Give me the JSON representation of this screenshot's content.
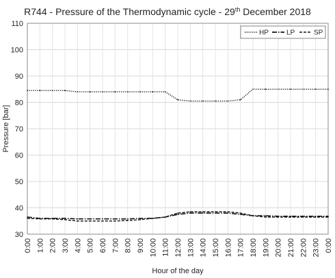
{
  "chart_data": {
    "type": "line",
    "title_main": "R744 - Pressure of the Thermodynamic cycle - 29",
    "title_sup": "th",
    "title_tail": " December 2018",
    "xlabel": "Hour of the day",
    "ylabel": "Pressure [bar]",
    "ylim": [
      30,
      110
    ],
    "yticks": [
      30,
      40,
      50,
      60,
      70,
      80,
      90,
      100,
      110
    ],
    "xticks": [
      "0:00",
      "1:00",
      "2:00",
      "3:00",
      "4:00",
      "5:00",
      "6:00",
      "7:00",
      "8:00",
      "9:00",
      "10:00",
      "11:00",
      "12:00",
      "13:00",
      "14:00",
      "15:00",
      "16:00",
      "17:00",
      "18:00",
      "19:00",
      "20:00",
      "21:00",
      "22:00",
      "23:00",
      "0:00"
    ],
    "grid": true,
    "legend_position": "top-right",
    "x": [
      0,
      1,
      2,
      3,
      4,
      5,
      6,
      7,
      8,
      9,
      10,
      11,
      12,
      13,
      14,
      15,
      16,
      17,
      18,
      19,
      20,
      21,
      22,
      23,
      24
    ],
    "series": [
      {
        "name": "HP",
        "style": "dotted",
        "values": [
          84.5,
          84.5,
          84.5,
          84.5,
          84.0,
          84.0,
          84.0,
          84.0,
          84.0,
          84.0,
          84.0,
          84.0,
          81.0,
          80.5,
          80.5,
          80.5,
          80.5,
          81.0,
          85.0,
          85.0,
          85.0,
          85.0,
          85.0,
          85.0,
          85.0
        ]
      },
      {
        "name": "LP",
        "style": "dash-dot",
        "values": [
          36.5,
          36.0,
          36.0,
          36.0,
          35.8,
          35.8,
          35.8,
          35.8,
          35.8,
          36.0,
          36.0,
          36.5,
          37.5,
          38.0,
          38.0,
          38.0,
          38.0,
          37.5,
          37.0,
          37.0,
          36.8,
          36.8,
          36.8,
          36.8,
          36.8
        ]
      },
      {
        "name": "SP",
        "style": "dashed",
        "values": [
          36.0,
          35.8,
          35.8,
          35.5,
          35.0,
          35.0,
          35.0,
          35.0,
          35.2,
          35.5,
          36.0,
          36.5,
          38.0,
          38.5,
          38.5,
          38.5,
          38.5,
          38.0,
          37.0,
          36.5,
          36.5,
          36.5,
          36.5,
          36.5,
          36.5
        ]
      }
    ]
  }
}
